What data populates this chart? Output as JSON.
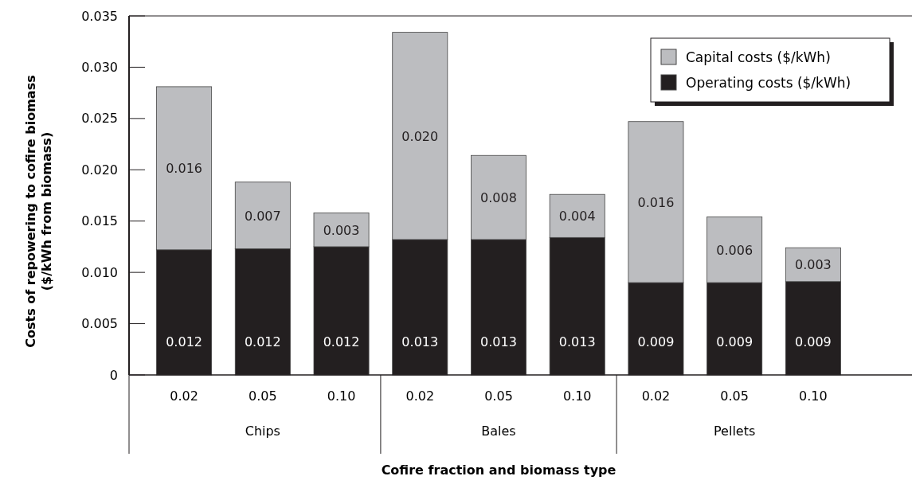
{
  "chart_data": {
    "type": "bar",
    "stacked": true,
    "xlabel": "Cofire fraction and biomass type",
    "ylabel": "Costs of repowering to cofire biomass\n($/kWh from biomass)",
    "categories": [
      "0.02",
      "0.05",
      "0.10",
      "0.02",
      "0.05",
      "0.10",
      "0.02",
      "0.05",
      "0.10"
    ],
    "annotations": [
      "Chips",
      "Bales",
      "Pellets"
    ],
    "series": [
      {
        "name": "Operating costs ($/kWh)",
        "color": "#231f20",
        "values": [
          0.0122,
          0.0123,
          0.0125,
          0.0132,
          0.0132,
          0.0134,
          0.009,
          0.009,
          0.0091
        ],
        "value_labels": [
          "0.012",
          "0.012",
          "0.012",
          "0.013",
          "0.013",
          "0.013",
          "0.009",
          "0.009",
          "0.009"
        ]
      },
      {
        "name": "Capital costs ($/kWh)",
        "color": "#bcbdc0",
        "values": [
          0.0159,
          0.0065,
          0.0033,
          0.0202,
          0.0082,
          0.0042,
          0.0157,
          0.0064,
          0.0033
        ],
        "value_labels": [
          "0.016",
          "0.007",
          "0.003",
          "0.020",
          "0.008",
          "0.004",
          "0.016",
          "0.006",
          "0.003"
        ]
      }
    ],
    "ylim": [
      0,
      0.035
    ],
    "yticks": [
      {
        "value": 0,
        "label": "0"
      },
      {
        "value": 0.005,
        "label": "0.005"
      },
      {
        "value": 0.01,
        "label": "0.010"
      },
      {
        "value": 0.015,
        "label": "0.015"
      },
      {
        "value": 0.02,
        "label": "0.020"
      },
      {
        "value": 0.025,
        "label": "0.025"
      },
      {
        "value": 0.03,
        "label": "0.030"
      },
      {
        "value": 0.035,
        "label": "0.035"
      }
    ],
    "legend": "top right",
    "grid": false
  }
}
